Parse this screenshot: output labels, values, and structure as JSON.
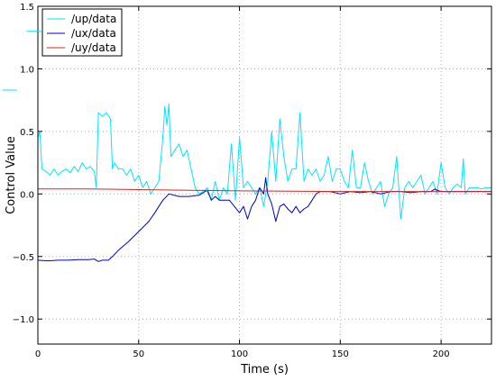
{
  "chart_data": {
    "type": "line",
    "xlabel": "Time (s)",
    "ylabel": "Control Value",
    "xlim": [
      0,
      225
    ],
    "ylim": [
      -1.2,
      1.5
    ],
    "xticks": [
      0,
      50,
      100,
      150,
      200
    ],
    "yticks": [
      -1.0,
      -0.5,
      0.0,
      0.5,
      1.0,
      1.5
    ],
    "xtick_labels": [
      "0",
      "50",
      "100",
      "150",
      "200"
    ],
    "ytick_labels": [
      "−1.0",
      "−0.5",
      "0.0",
      "0.5",
      "1.0",
      "1.5"
    ],
    "grid": true,
    "legend_position": "top-left",
    "series": [
      {
        "name": "/up/data",
        "color": "#00e5ff",
        "x": [
          0,
          1,
          2,
          4,
          6,
          8,
          10,
          12,
          14,
          16,
          18,
          20,
          22,
          24,
          26,
          28,
          29,
          30,
          32,
          34,
          36,
          37,
          38,
          40,
          42,
          44,
          46,
          48,
          50,
          52,
          54,
          56,
          58,
          60,
          62,
          63,
          64,
          65,
          66,
          68,
          70,
          72,
          74,
          76,
          78,
          80,
          82,
          84,
          86,
          88,
          90,
          92,
          94,
          96,
          98,
          100,
          102,
          104,
          106,
          108,
          110,
          112,
          114,
          116,
          118,
          120,
          122,
          124,
          126,
          128,
          130,
          132,
          134,
          136,
          138,
          140,
          142,
          144,
          146,
          148,
          150,
          152,
          154,
          156,
          158,
          160,
          162,
          164,
          166,
          168,
          170,
          172,
          174,
          176,
          178,
          180,
          182,
          184,
          186,
          188,
          190,
          192,
          194,
          196,
          198,
          200,
          202,
          204,
          206,
          208,
          210,
          211,
          212,
          214,
          216,
          218,
          220,
          222,
          225
        ],
        "values": [
          0.45,
          0.5,
          0.2,
          0.18,
          0.15,
          0.2,
          0.15,
          0.18,
          0.2,
          0.17,
          0.22,
          0.18,
          0.25,
          0.2,
          0.22,
          0.18,
          0.05,
          0.65,
          0.62,
          0.65,
          0.6,
          0.2,
          0.25,
          0.2,
          0.2,
          0.15,
          0.2,
          0.1,
          0.15,
          0.05,
          0.1,
          0.0,
          0.05,
          0.1,
          0.45,
          0.7,
          0.55,
          0.72,
          0.3,
          0.35,
          0.4,
          0.3,
          0.35,
          0.2,
          0.05,
          0.0,
          0.02,
          0.05,
          -0.05,
          0.1,
          -0.05,
          0.05,
          0.0,
          0.4,
          -0.05,
          0.45,
          0.05,
          0.1,
          0.05,
          0.0,
          0.05,
          -0.1,
          0.1,
          0.5,
          0.1,
          0.6,
          0.3,
          0.1,
          0.2,
          0.2,
          0.65,
          0.1,
          0.2,
          0.15,
          0.2,
          0.1,
          0.15,
          0.3,
          0.1,
          0.2,
          0.2,
          0.1,
          0.05,
          0.35,
          0.05,
          0.05,
          0.25,
          0.1,
          0.0,
          0.05,
          0.1,
          -0.1,
          0.0,
          0.05,
          0.3,
          -0.2,
          0.05,
          0.1,
          0.05,
          0.1,
          0.15,
          0.0,
          0.05,
          0.1,
          0.0,
          0.25,
          0.05,
          0.0,
          0.05,
          0.08,
          0.05,
          0.28,
          0.0,
          0.05,
          0.05,
          0.05,
          0.04,
          0.05,
          0.05
        ]
      },
      {
        "name": "/ux/data",
        "color": "#0000cc",
        "x": [
          0,
          5,
          10,
          15,
          20,
          25,
          28,
          30,
          32,
          35,
          37,
          40,
          45,
          50,
          55,
          58,
          60,
          62,
          65,
          70,
          75,
          80,
          84,
          86,
          88,
          90,
          95,
          100,
          102,
          104,
          106,
          108,
          110,
          112,
          113,
          114,
          116,
          118,
          120,
          122,
          124,
          126,
          128,
          130,
          132,
          134,
          136,
          138,
          140,
          145,
          150,
          155,
          160,
          165,
          170,
          175,
          180,
          185,
          190,
          195,
          197,
          198,
          200,
          205,
          210,
          215,
          220,
          225
        ],
        "values": [
          -0.53,
          -0.535,
          -0.53,
          -0.53,
          -0.525,
          -0.525,
          -0.52,
          -0.54,
          -0.53,
          -0.53,
          -0.5,
          -0.45,
          -0.38,
          -0.3,
          -0.22,
          -0.15,
          -0.1,
          -0.05,
          0.0,
          -0.02,
          -0.02,
          -0.01,
          0.03,
          -0.05,
          -0.02,
          -0.05,
          -0.05,
          -0.15,
          -0.1,
          -0.2,
          -0.1,
          -0.05,
          0.05,
          0.0,
          0.13,
          0.0,
          -0.08,
          -0.22,
          -0.1,
          -0.08,
          -0.12,
          -0.15,
          -0.1,
          -0.15,
          -0.12,
          -0.1,
          -0.05,
          0.0,
          0.02,
          0.02,
          0.0,
          0.02,
          0.01,
          0.02,
          0.0,
          0.02,
          0.02,
          0.01,
          0.02,
          0.02,
          0.04,
          0.03,
          0.02,
          0.02,
          0.02,
          0.02,
          0.02,
          0.02
        ]
      },
      {
        "name": "/uy/data",
        "color": "#d62728",
        "x": [
          0,
          25,
          50,
          75,
          100,
          125,
          150,
          175,
          200,
          225
        ],
        "values": [
          0.04,
          0.04,
          0.035,
          0.03,
          0.025,
          0.022,
          0.02,
          0.02,
          0.018,
          0.02
        ]
      }
    ],
    "annotations": {
      "stray_mark_1": {
        "x": -2,
        "y": 1.3
      },
      "stray_mark_2": {
        "x": -14,
        "y": 0.83
      }
    }
  }
}
